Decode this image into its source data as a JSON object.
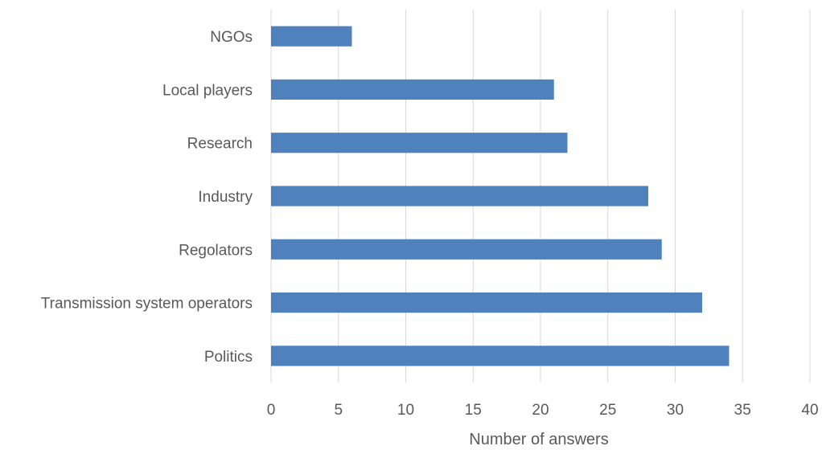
{
  "chart_data": {
    "type": "bar",
    "orientation": "horizontal",
    "categories": [
      "NGOs",
      "Local players",
      "Research",
      "Industry",
      "Regolators",
      "Transmission system operators",
      "Politics"
    ],
    "values": [
      6,
      21,
      22,
      28,
      29,
      32,
      34
    ],
    "xlabel": "Number of answers",
    "xlim": [
      0,
      40
    ],
    "xticks": [
      "0",
      "5",
      "10",
      "15",
      "20",
      "25",
      "30",
      "35",
      "40"
    ],
    "grid": "vertical",
    "bar_color": "#4F81BD",
    "legend": "none"
  }
}
